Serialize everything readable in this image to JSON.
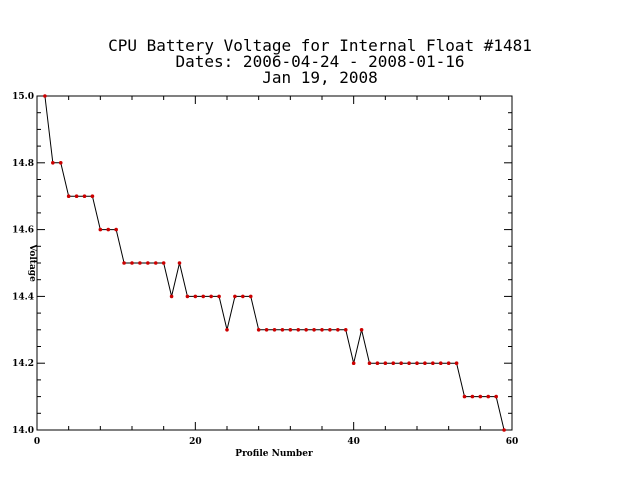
{
  "chart_data": {
    "type": "line",
    "title_lines": [
      "CPU Battery Voltage for Internal Float #1481",
      "Dates:  2006-04-24 -  2008-01-16",
      "Jan 19, 2008"
    ],
    "xlabel": "Profile Number",
    "ylabel": "Voltage",
    "xlim": [
      0,
      60
    ],
    "ylim": [
      14.0,
      15.0
    ],
    "xticks": [
      0,
      20,
      40,
      60
    ],
    "yticks": [
      14.0,
      14.2,
      14.4,
      14.6,
      14.8,
      15.0
    ],
    "xtick_labels": [
      "0",
      "20",
      "40",
      "60"
    ],
    "ytick_labels": [
      "14.0",
      "14.2",
      "14.4",
      "14.6",
      "14.8",
      "15.0"
    ],
    "line_color": "#000000",
    "marker_color": "#cc0000",
    "x": [
      1,
      2,
      3,
      4,
      5,
      6,
      7,
      8,
      9,
      10,
      11,
      12,
      13,
      14,
      15,
      16,
      17,
      18,
      19,
      20,
      21,
      22,
      23,
      24,
      25,
      26,
      27,
      28,
      29,
      30,
      31,
      32,
      33,
      34,
      35,
      36,
      37,
      38,
      39,
      40,
      41,
      42,
      43,
      44,
      45,
      46,
      47,
      48,
      49,
      50,
      51,
      52,
      53,
      54,
      55,
      56,
      57,
      58,
      59
    ],
    "y": [
      15.0,
      14.8,
      14.8,
      14.7,
      14.7,
      14.7,
      14.7,
      14.6,
      14.6,
      14.6,
      14.5,
      14.5,
      14.5,
      14.5,
      14.5,
      14.5,
      14.4,
      14.5,
      14.4,
      14.4,
      14.4,
      14.4,
      14.4,
      14.3,
      14.4,
      14.4,
      14.4,
      14.3,
      14.3,
      14.3,
      14.3,
      14.3,
      14.3,
      14.3,
      14.3,
      14.3,
      14.3,
      14.3,
      14.3,
      14.2,
      14.3,
      14.2,
      14.2,
      14.2,
      14.2,
      14.2,
      14.2,
      14.2,
      14.2,
      14.2,
      14.2,
      14.2,
      14.2,
      14.1,
      14.1,
      14.1,
      14.1,
      14.1,
      14.0
    ]
  }
}
